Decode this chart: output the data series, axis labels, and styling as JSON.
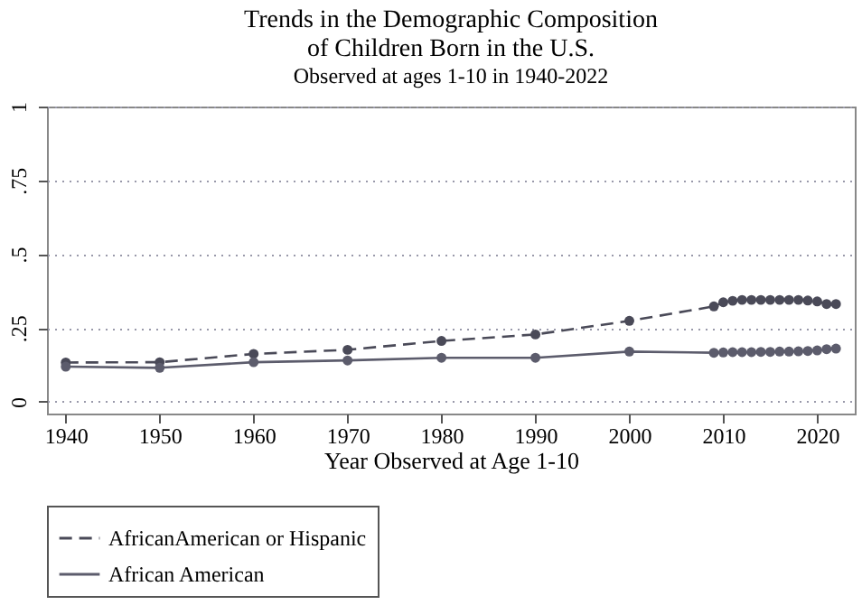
{
  "chart_data": {
    "type": "line",
    "title": [
      "Trends in the Demographic Composition",
      "of Children Born in the U.S."
    ],
    "subtitle": "Observed at ages 1-10 in 1940-2022",
    "xlabel": "Year Observed at Age 1-10",
    "xlim": [
      1938,
      2024
    ],
    "xticks": [
      1940,
      1950,
      1960,
      1970,
      1980,
      1990,
      2000,
      2010,
      2020
    ],
    "ylim": [
      -0.04,
      1
    ],
    "yticks": [
      {
        "value": 0,
        "label": "0"
      },
      {
        "value": 0.25,
        "label": ".25"
      },
      {
        "value": 0.5,
        "label": ".5"
      },
      {
        "value": 0.75,
        "label": ".75"
      },
      {
        "value": 1,
        "label": "1"
      }
    ],
    "grid": "y",
    "legend": "bottom",
    "marker": "circle",
    "series": [
      {
        "name": "AfricanAmerican or Hispanic",
        "color": "#4a4a58",
        "line_style": "dashed",
        "x": [
          1940,
          1950,
          1960,
          1970,
          1980,
          1990,
          2000,
          2009,
          2010,
          2011,
          2012,
          2013,
          2014,
          2015,
          2016,
          2017,
          2018,
          2019,
          2020,
          2021,
          2022
        ],
        "values": [
          0.133,
          0.134,
          0.162,
          0.176,
          0.206,
          0.228,
          0.274,
          0.323,
          0.337,
          0.342,
          0.345,
          0.345,
          0.345,
          0.345,
          0.345,
          0.345,
          0.345,
          0.343,
          0.34,
          0.331,
          0.331
        ]
      },
      {
        "name": "African American",
        "color": "#5c5c6c",
        "line_style": "solid",
        "x": [
          1940,
          1950,
          1960,
          1970,
          1980,
          1990,
          2000,
          2009,
          2010,
          2011,
          2012,
          2013,
          2014,
          2015,
          2016,
          2017,
          2018,
          2019,
          2020,
          2021,
          2022
        ],
        "values": [
          0.119,
          0.115,
          0.134,
          0.14,
          0.149,
          0.149,
          0.17,
          0.166,
          0.167,
          0.168,
          0.168,
          0.168,
          0.169,
          0.169,
          0.17,
          0.17,
          0.171,
          0.172,
          0.174,
          0.178,
          0.18
        ]
      }
    ]
  }
}
